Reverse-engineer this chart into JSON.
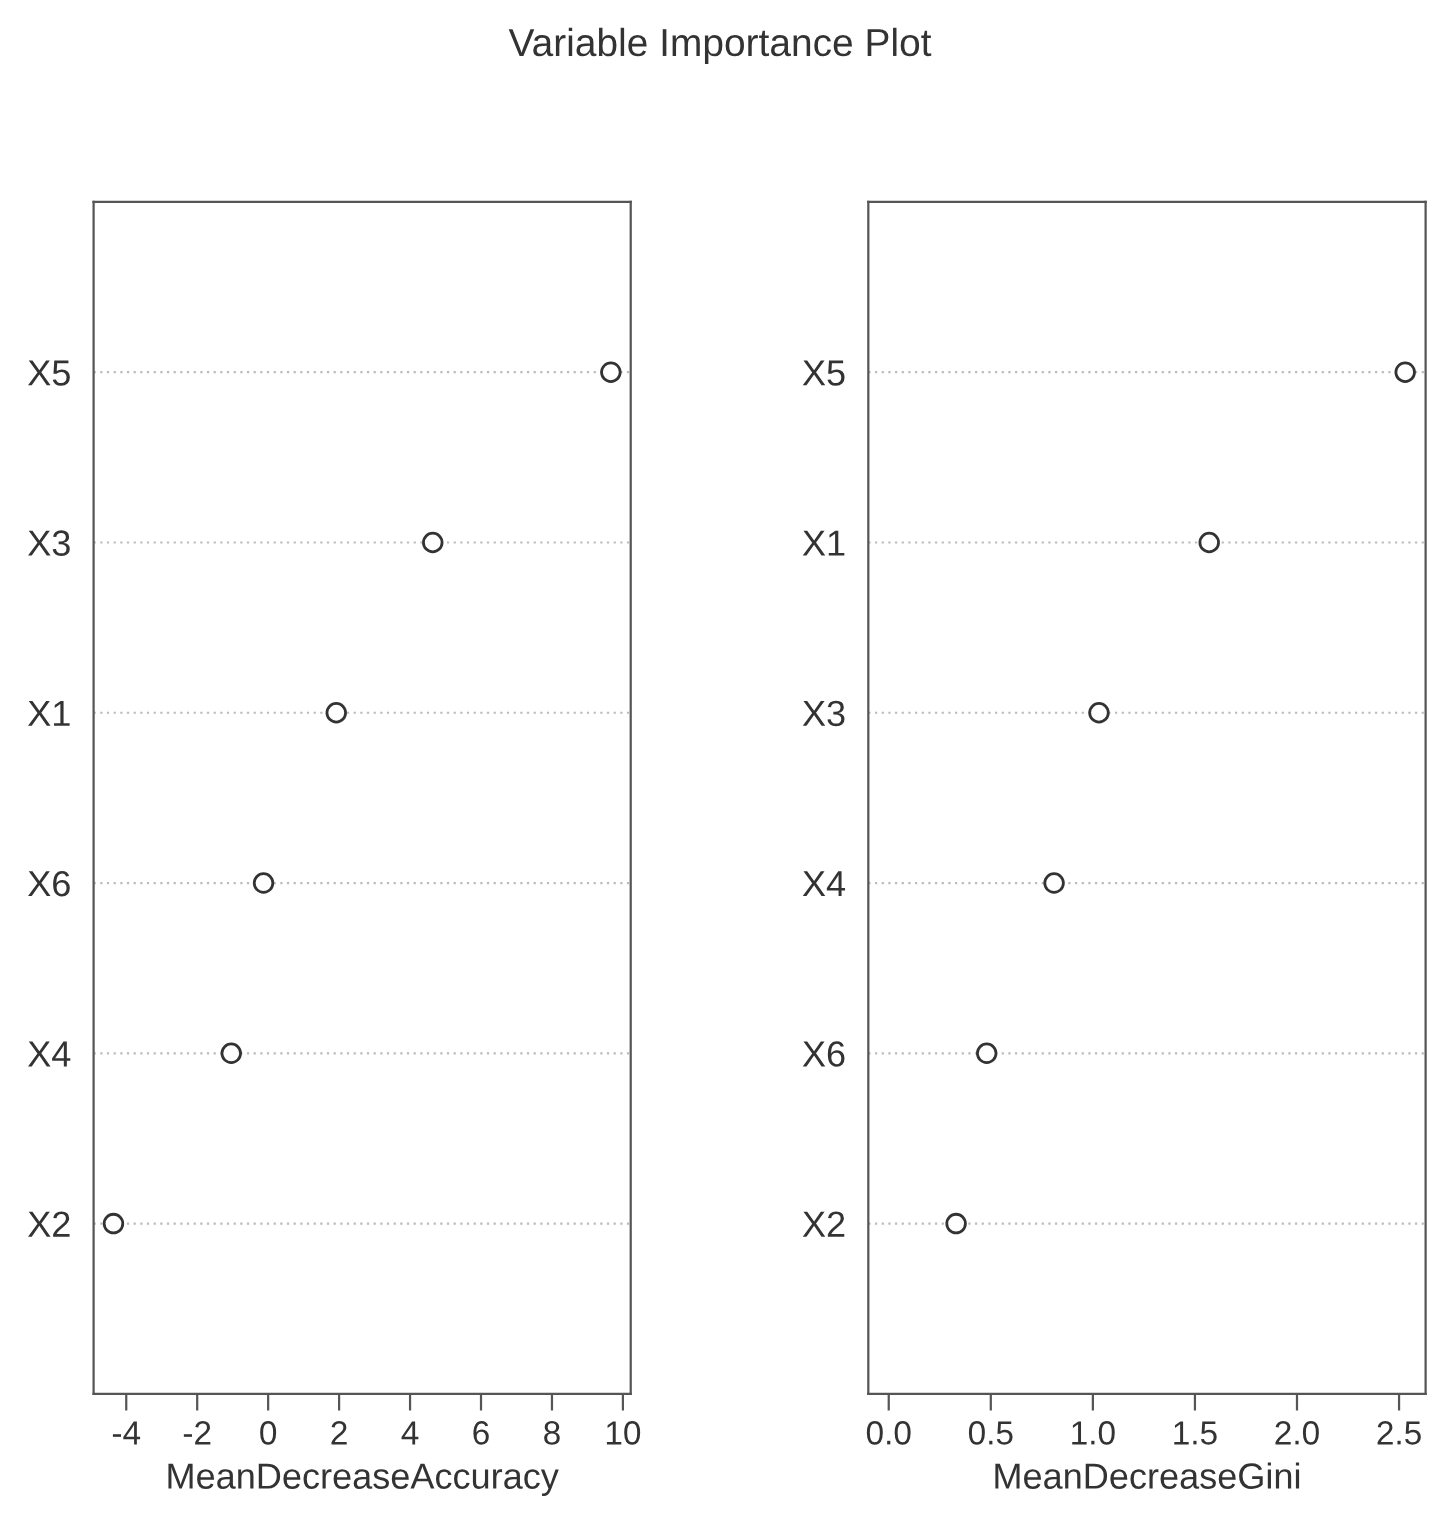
{
  "chart_data": [
    {
      "type": "scatter",
      "title": "Variable Importance Plot",
      "orientation": "horizontal",
      "categories": [
        "X5",
        "X3",
        "X1",
        "X6",
        "X4",
        "X2"
      ],
      "values": [
        9.66,
        4.64,
        1.92,
        -0.13,
        -1.04,
        -4.36
      ],
      "color": "#333333",
      "marker": "circle",
      "grid": "y",
      "xlabel": "MeanDecreaseAccuracy",
      "xlim": [
        -4.92,
        10.22
      ],
      "xticks": [
        -4,
        -2,
        0,
        2,
        4,
        6,
        8,
        10
      ]
    },
    {
      "type": "scatter",
      "orientation": "horizontal",
      "categories": [
        "X5",
        "X1",
        "X3",
        "X4",
        "X6",
        "X2"
      ],
      "values": [
        2.53,
        1.57,
        1.03,
        0.81,
        0.48,
        0.33
      ],
      "color": "#333333",
      "marker": "circle",
      "grid": "y",
      "xlabel": "MeanDecreaseGini",
      "xlim": [
        -0.1,
        2.63
      ],
      "xticks": [
        {
          "value": 0,
          "label": "0.0"
        },
        0.5,
        {
          "value": 1,
          "label": "1.0"
        },
        1.5,
        {
          "value": 2,
          "label": "2.0"
        },
        2.5
      ]
    }
  ]
}
